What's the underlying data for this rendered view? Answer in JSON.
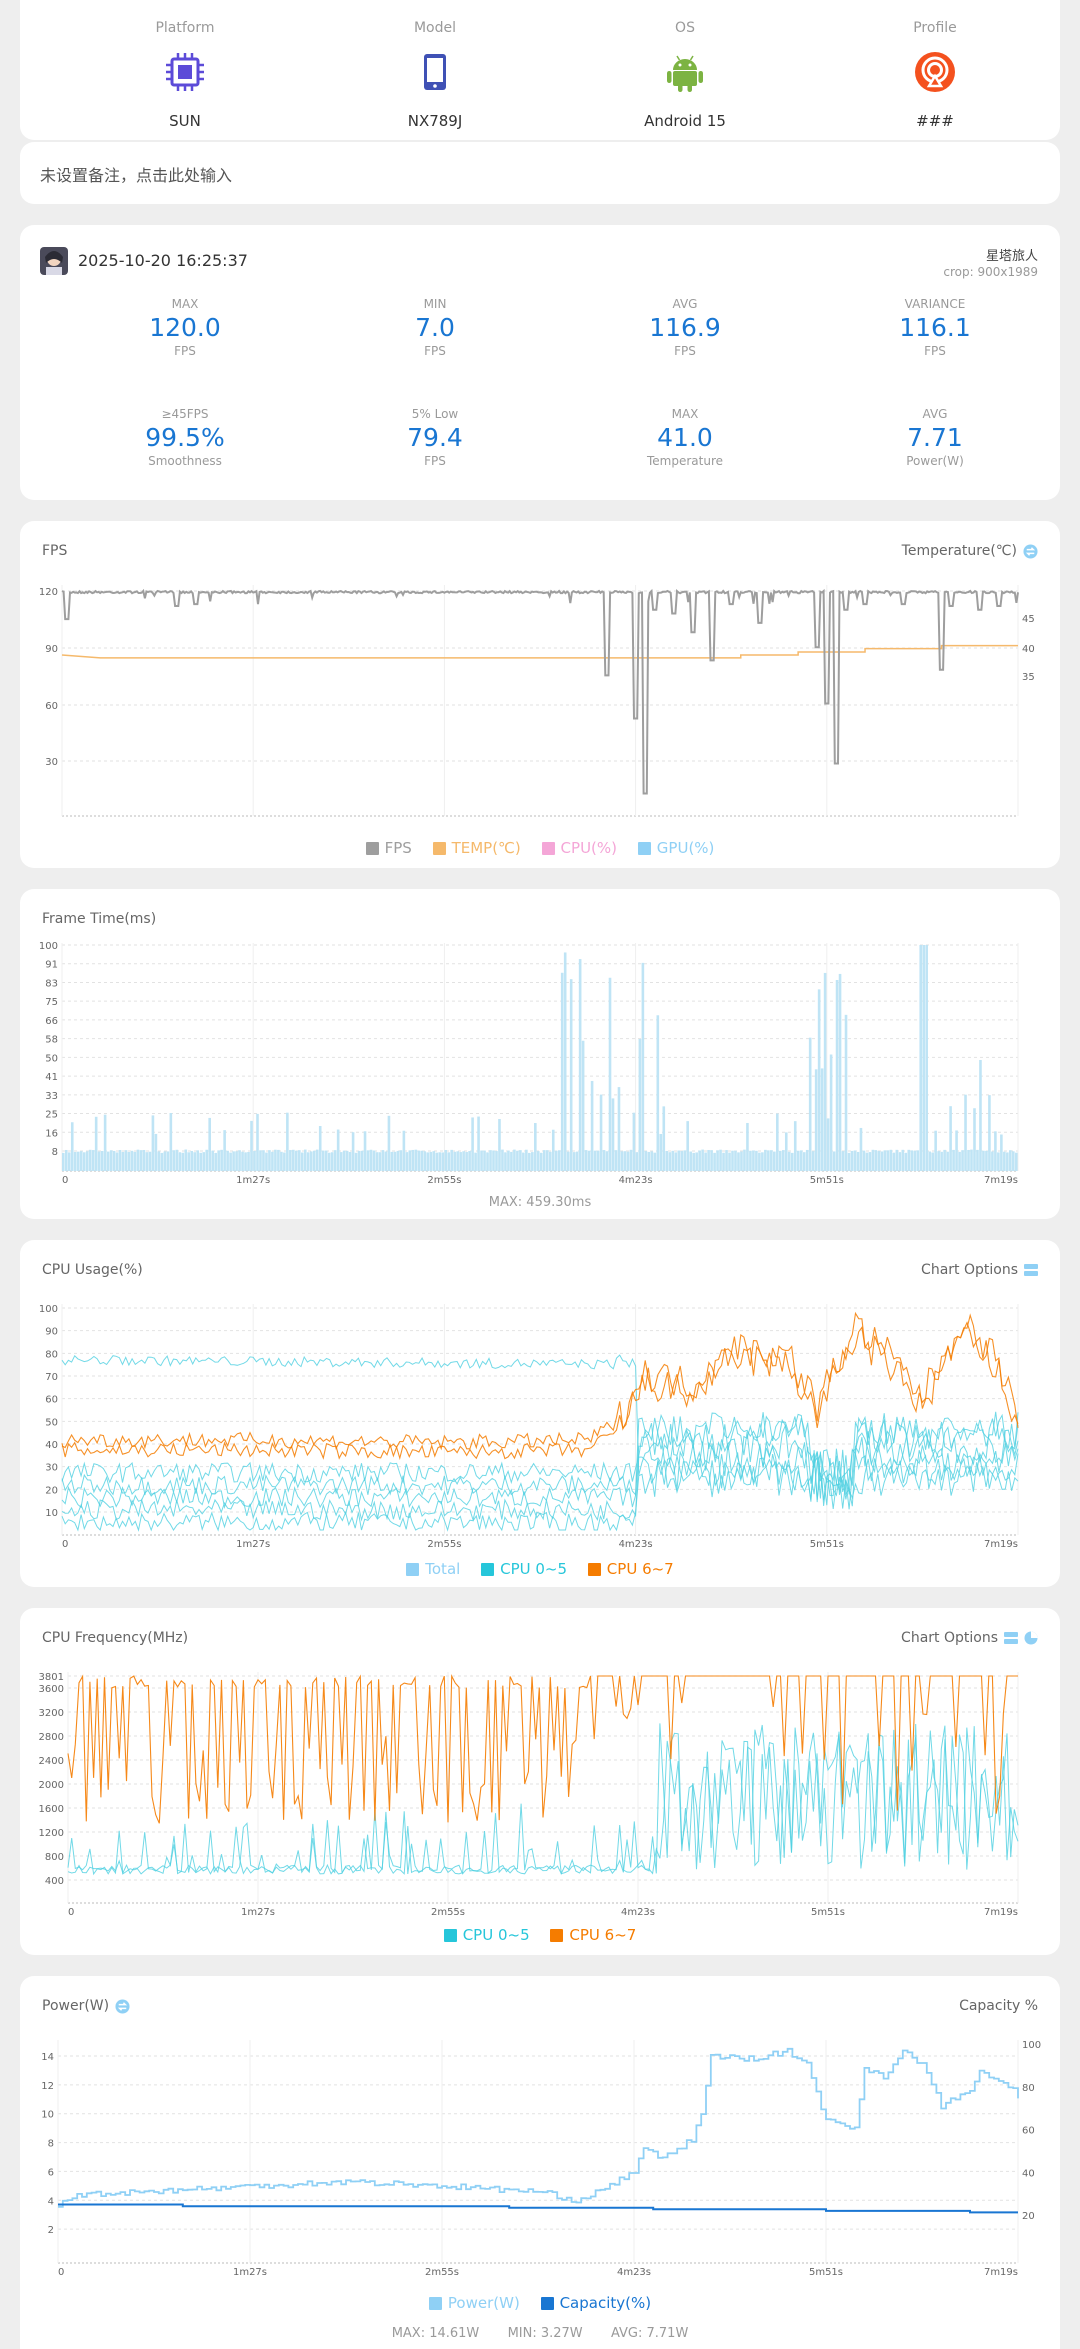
{
  "device": {
    "platform": {
      "label": "Platform",
      "value": "SUN",
      "icon": "cpu-chip-icon"
    },
    "model": {
      "label": "Model",
      "value": "NX789J",
      "icon": "phone-icon"
    },
    "os": {
      "label": "OS",
      "value": "Android 15",
      "icon": "android-icon"
    },
    "profile": {
      "label": "Profile",
      "value": "###",
      "icon": "profile-wifi-icon"
    }
  },
  "note": {
    "text": "未设置备注，点击此处输入"
  },
  "session": {
    "datetime": "2025-10-20 16:25:37",
    "game": "星塔旅人",
    "crop": "crop: 900x1989",
    "stats_row1": [
      {
        "label": "MAX",
        "value": "120.0",
        "unit": "FPS"
      },
      {
        "label": "MIN",
        "value": "7.0",
        "unit": "FPS"
      },
      {
        "label": "AVG",
        "value": "116.9",
        "unit": "FPS"
      },
      {
        "label": "VARIANCE",
        "value": "116.1",
        "unit": "FPS"
      }
    ],
    "stats_row2": [
      {
        "label": "≥45FPS",
        "value": "99.5%",
        "unit": "Smoothness"
      },
      {
        "label": "5% Low",
        "value": "79.4",
        "unit": "FPS"
      },
      {
        "label": "MAX",
        "value": "41.0",
        "unit": "Temperature"
      },
      {
        "label": "AVG",
        "value": "7.71",
        "unit": "Power(W)"
      }
    ]
  },
  "time_ticks": [
    "0",
    "1m27s",
    "2m55s",
    "4m23s",
    "5m51s",
    "7m19s"
  ],
  "fps_chart": {
    "title": "FPS",
    "right_title": "Temperature(℃)",
    "left_ticks": [
      "120",
      "90",
      "60",
      "30"
    ],
    "right_ticks": [
      "45",
      "40",
      "35"
    ],
    "legend": [
      {
        "name": "FPS",
        "color": "#9e9e9e"
      },
      {
        "name": "TEMP(℃)",
        "color": "#f5b96b"
      },
      {
        "name": "CPU(%)",
        "color": "#f4a6d7"
      },
      {
        "name": "GPU(%)",
        "color": "#8fd0f5"
      }
    ]
  },
  "frametime_chart": {
    "title": "Frame Time(ms)",
    "left_ticks": [
      "100",
      "91",
      "83",
      "75",
      "66",
      "58",
      "50",
      "41",
      "33",
      "25",
      "16",
      "8"
    ],
    "max_text": "MAX: 459.30ms"
  },
  "cpu_usage_chart": {
    "title": "CPU Usage(%)",
    "options_label": "Chart Options",
    "left_ticks": [
      "100",
      "90",
      "80",
      "70",
      "60",
      "50",
      "40",
      "30",
      "20",
      "10"
    ],
    "legend": [
      {
        "name": "Total",
        "color": "#8fd0f5"
      },
      {
        "name": "CPU 0~5",
        "color": "#26c6da"
      },
      {
        "name": "CPU 6~7",
        "color": "#f57c00"
      }
    ]
  },
  "cpu_freq_chart": {
    "title": "CPU Frequency(MHz)",
    "options_label": "Chart Options",
    "left_ticks": [
      "3801",
      "3600",
      "3200",
      "2800",
      "2400",
      "2000",
      "1600",
      "1200",
      "800",
      "400"
    ],
    "legend": [
      {
        "name": "CPU 0~5",
        "color": "#26c6da"
      },
      {
        "name": "CPU 6~7",
        "color": "#f57c00"
      }
    ]
  },
  "power_chart": {
    "title": "Power(W)",
    "right_title": "Capacity %",
    "left_ticks": [
      "14",
      "12",
      "10",
      "8",
      "6",
      "4",
      "2"
    ],
    "right_ticks": [
      "100",
      "80",
      "60",
      "40",
      "20"
    ],
    "legend": [
      {
        "name": "Power(W)",
        "color": "#8fd0f5"
      },
      {
        "name": "Capacity(%)",
        "color": "#1976d2"
      }
    ],
    "summary": {
      "max": "MAX: 14.61W",
      "min": "MIN: 3.27W",
      "avg": "AVG: 7.71W"
    }
  },
  "colors": {
    "accent": "#1976d2",
    "fps": "#9e9e9e",
    "temp": "#f5b96b",
    "gpu": "#8fd0f5",
    "cpu_small": "#26c6da",
    "cpu_big": "#f57c00",
    "capacity": "#1976d2"
  },
  "chart_data": [
    {
      "type": "line",
      "title": "FPS",
      "x_range": [
        "0",
        "7m19s"
      ],
      "ylim": [
        0,
        120
      ],
      "series": [
        {
          "name": "FPS",
          "summary": {
            "max": 120.0,
            "min": 7.0,
            "avg": 116.9
          }
        },
        {
          "name": "TEMP(℃)",
          "values_approx": [
            38.5,
            38,
            38,
            38,
            38,
            38,
            38,
            38.7,
            39.5,
            40.2,
            40.8
          ]
        }
      ]
    },
    {
      "type": "bar",
      "title": "Frame Time(ms)",
      "ylim": [
        0,
        100
      ],
      "max": 459.3
    },
    {
      "type": "line",
      "title": "CPU Usage(%)",
      "ylim": [
        0,
        100
      ],
      "series": [
        {
          "name": "CPU 6~7",
          "values_approx": [
            38,
            40,
            38,
            40,
            38,
            38,
            38,
            42,
            70,
            75,
            55,
            85,
            60,
            80,
            45
          ]
        }
      ]
    },
    {
      "type": "line",
      "title": "CPU Frequency(MHz)",
      "ylim": [
        400,
        3801
      ]
    },
    {
      "type": "line",
      "title": "Power(W)",
      "ylim": [
        0,
        14
      ],
      "series": [
        {
          "name": "Power(W)",
          "values_approx": [
            3.5,
            4.5,
            5,
            5.2,
            5,
            4.5,
            3.8,
            7,
            13.5,
            14,
            11,
            8.5,
            14.3,
            10.5,
            12.5,
            12
          ]
        },
        {
          "name": "Capacity(%)",
          "values_approx": [
            25,
            24,
            23,
            22,
            21,
            20,
            19
          ]
        }
      ],
      "summary": {
        "max": 14.61,
        "min": 3.27,
        "avg": 7.71
      }
    }
  ]
}
